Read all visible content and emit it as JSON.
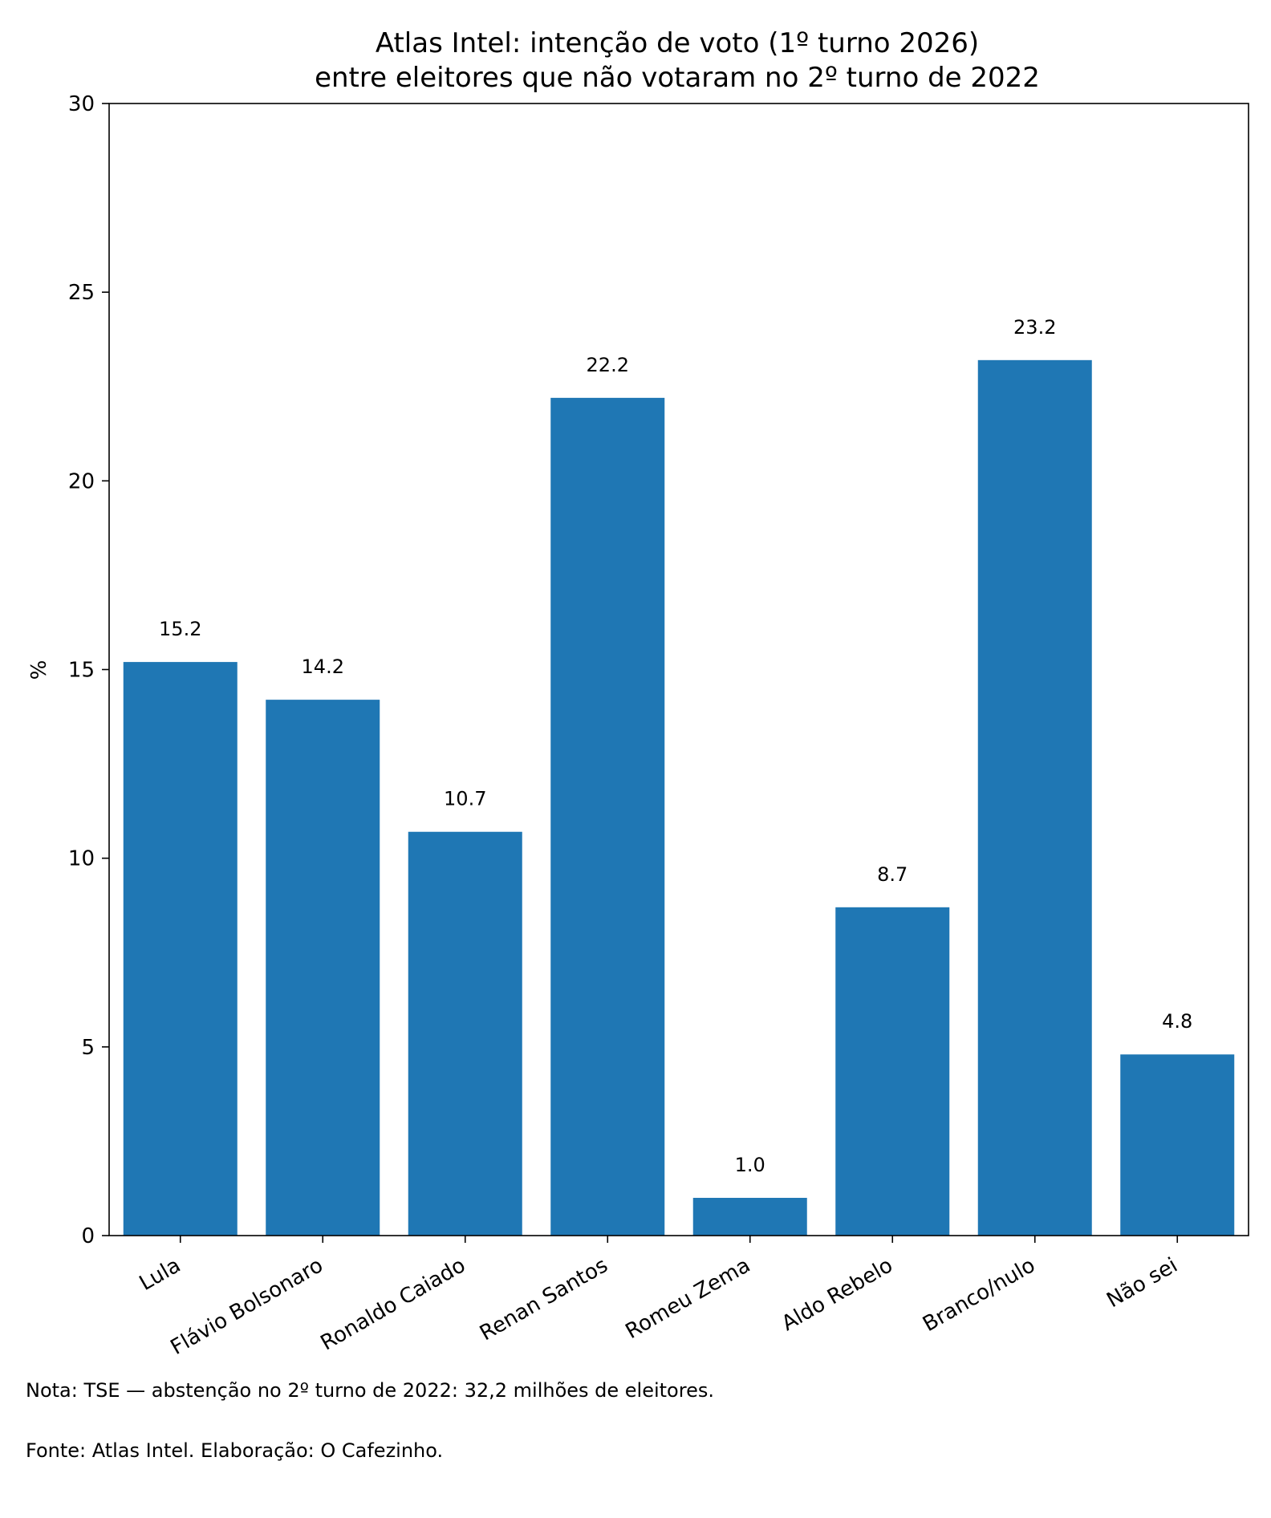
{
  "chart_data": {
    "type": "bar",
    "title_line1": "Atlas Intel: intenção de voto (1º turno 2026)",
    "title_line2": "entre eleitores que não votaram no 2º turno de 2022",
    "ylabel": "%",
    "xlabel": "",
    "ylim": [
      0,
      30
    ],
    "yticks": [
      "0",
      "5",
      "10",
      "15",
      "20",
      "25",
      "30"
    ],
    "categories": [
      "Lula",
      "Flávio Bolsonaro",
      "Ronaldo Caiado",
      "Renan Santos",
      "Romeu Zema",
      "Aldo Rebelo",
      "Branco/nulo",
      "Não sei"
    ],
    "values": [
      15.2,
      14.2,
      10.7,
      22.2,
      1.0,
      8.7,
      23.2,
      4.8
    ],
    "value_labels": [
      "15.2",
      "14.2",
      "10.7",
      "22.2",
      "1.0",
      "8.7",
      "23.2",
      "4.8"
    ],
    "bar_color": "#1f77b4",
    "grid": false,
    "legend": "none"
  },
  "footer": {
    "note": "Nota: TSE — abstenção no 2º turno de 2022: 32,2 milhões de eleitores.",
    "source": "Fonte: Atlas Intel. Elaboração: O Cafezinho."
  }
}
